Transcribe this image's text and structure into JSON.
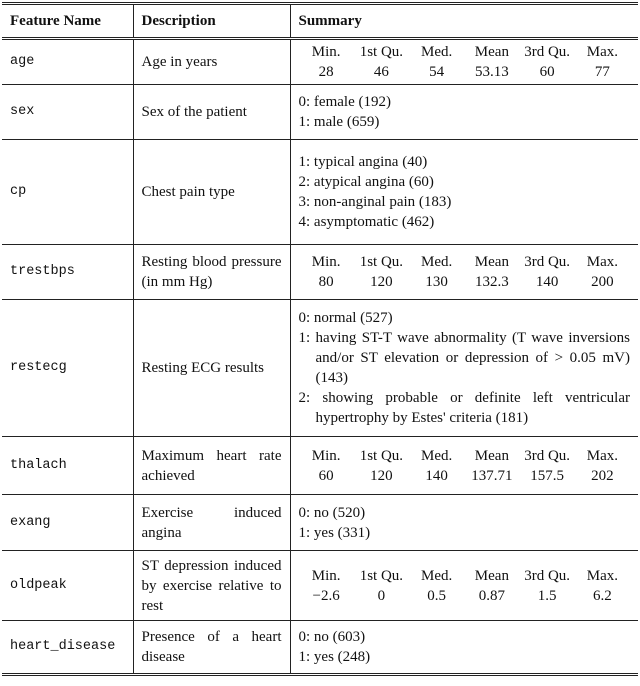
{
  "header": [
    "Feature Name",
    "Description",
    "Summary"
  ],
  "rows": [
    {
      "name": "age",
      "description": "Age in years",
      "summary": {
        "labels": [
          "Min.",
          "1st Qu.",
          "Med.",
          "Mean",
          "3rd Qu.",
          "Max."
        ],
        "values": [
          28,
          46,
          54,
          53.13,
          60,
          77
        ]
      }
    },
    {
      "name": "sex",
      "description": "Sex of the patient",
      "summary": {
        "items": [
          "0: female (192)",
          "1: male (659)"
        ]
      }
    },
    {
      "name": "cp",
      "description": "Chest pain type",
      "summary": {
        "items": [
          "1: typical angina (40)",
          "2: atypical angina (60)",
          "3: non-anginal pain (183)",
          "4: asymptomatic (462)"
        ]
      }
    },
    {
      "name": "trestbps",
      "description": "Resting blood pressure (in mm Hg)",
      "summary": {
        "labels": [
          "Min.",
          "1st Qu.",
          "Med.",
          "Mean",
          "3rd Qu.",
          "Max."
        ],
        "values": [
          80,
          120,
          130,
          132.3,
          140,
          200
        ]
      }
    },
    {
      "name": "restecg",
      "description": "Resting ECG results",
      "summary": {
        "items": [
          "0: normal (527)",
          "1: having ST-T wave abnormality (T wave inversions and/or ST elevation or depression of > 0.05 mV) (143)",
          "2: showing probable or definite left ventricular hypertrophy by Estes' criteria (181)"
        ]
      }
    },
    {
      "name": "thalach",
      "description": "Maximum heart rate achieved",
      "summary": {
        "labels": [
          "Min.",
          "1st Qu.",
          "Med.",
          "Mean",
          "3rd Qu.",
          "Max."
        ],
        "values": [
          60,
          120,
          140,
          137.71,
          157.5,
          202
        ]
      }
    },
    {
      "name": "exang",
      "description": "Exercise induced angina",
      "summary": {
        "items": [
          "0: no (520)",
          "1: yes (331)"
        ]
      }
    },
    {
      "name": "oldpeak",
      "description": "ST depression induced by exercise relative to rest",
      "summary": {
        "labels": [
          "Min.",
          "1st Qu.",
          "Med.",
          "Mean",
          "3rd Qu.",
          "Max."
        ],
        "values": [
          "−2.6",
          0,
          0.5,
          0.87,
          1.5,
          6.2
        ]
      }
    },
    {
      "name": "heart_disease",
      "description": "Presence of a heart disease",
      "summary": {
        "items": [
          "0: no (603)",
          "1: yes (248)"
        ]
      }
    }
  ]
}
